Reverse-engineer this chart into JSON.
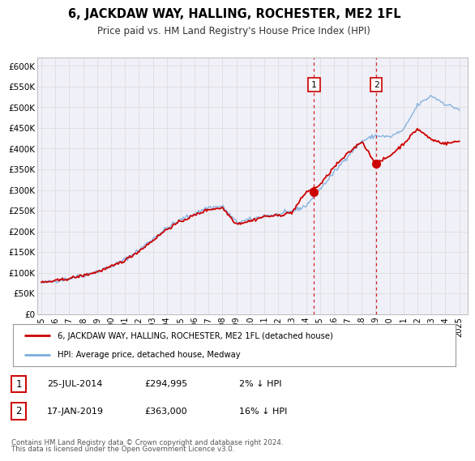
{
  "title": "6, JACKDAW WAY, HALLING, ROCHESTER, ME2 1FL",
  "subtitle": "Price paid vs. HM Land Registry's House Price Index (HPI)",
  "legend_property": "6, JACKDAW WAY, HALLING, ROCHESTER, ME2 1FL (detached house)",
  "legend_hpi": "HPI: Average price, detached house, Medway",
  "annotation1_date": "25-JUL-2014",
  "annotation1_price": "£294,995",
  "annotation1_hpi": "2% ↓ HPI",
  "annotation2_date": "17-JAN-2019",
  "annotation2_price": "£363,000",
  "annotation2_hpi": "16% ↓ HPI",
  "footnote1": "Contains HM Land Registry data © Crown copyright and database right 2024.",
  "footnote2": "This data is licensed under the Open Government Licence v3.0.",
  "property_color": "#cc0000",
  "hpi_color": "#7aacdc",
  "vline_color": "#cc0000",
  "marker1_x": 2014.57,
  "marker1_y": 294995,
  "marker2_x": 2019.04,
  "marker2_y": 363000,
  "vline1_x": 2014.57,
  "vline2_x": 2019.04,
  "ylim_min": 0,
  "ylim_max": 620000,
  "xlim_start": 1994.7,
  "xlim_end": 2025.6,
  "yticks": [
    0,
    50000,
    100000,
    150000,
    200000,
    250000,
    300000,
    350000,
    400000,
    450000,
    500000,
    550000,
    600000
  ],
  "ytick_labels": [
    "£0",
    "£50K",
    "£100K",
    "£150K",
    "£200K",
    "£250K",
    "£300K",
    "£350K",
    "£400K",
    "£450K",
    "£500K",
    "£550K",
    "£600K"
  ],
  "xticks": [
    1995,
    1996,
    1997,
    1998,
    1999,
    2000,
    2001,
    2002,
    2003,
    2004,
    2005,
    2006,
    2007,
    2008,
    2009,
    2010,
    2011,
    2012,
    2013,
    2014,
    2015,
    2016,
    2017,
    2018,
    2019,
    2020,
    2021,
    2022,
    2023,
    2024,
    2025
  ],
  "background_color": "#ffffff",
  "plot_bg_color": "#f0f0f8",
  "grid_color": "#dddddd",
  "annotation_box_color": "#cc0000"
}
